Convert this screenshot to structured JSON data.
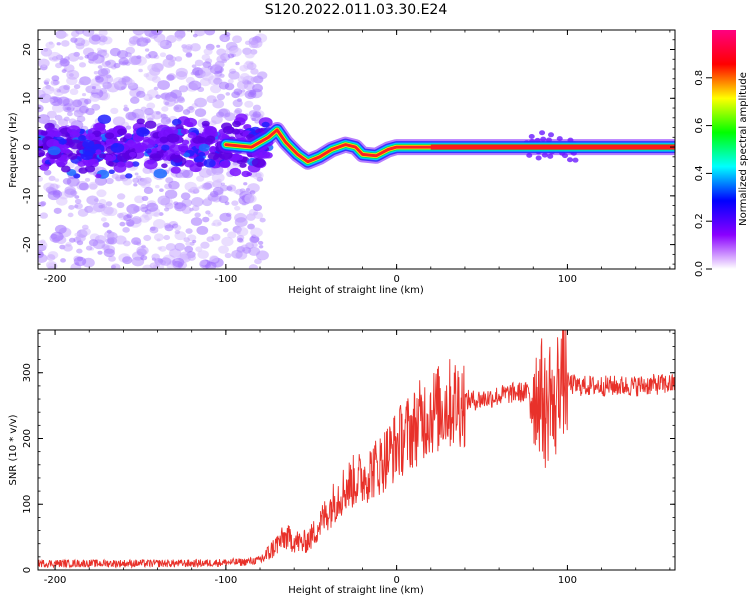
{
  "title": "S120.2022.011.03.30.E24",
  "chart_data": [
    {
      "type": "heatmap",
      "xlabel": "Height of straight line (km)",
      "ylabel": "Frequency (Hz)",
      "xlim": [
        -210,
        163
      ],
      "ylim": [
        -25,
        24
      ],
      "xticks": [
        -200,
        -100,
        0,
        100
      ],
      "yticks": [
        -20,
        -10,
        0,
        10,
        20
      ],
      "colorbar": {
        "label": "Normalized spectral amplitude",
        "range": [
          0,
          1
        ],
        "ticks": [
          "0.0",
          "0.2",
          "0.4",
          "0.6",
          "0.8"
        ],
        "colormap": [
          "#ffffff",
          "#8a00ff",
          "#0000ff",
          "#00ffff",
          "#00ff00",
          "#ffff00",
          "#ff0000",
          "#ff0080"
        ]
      },
      "ridge": [
        {
          "x": -100,
          "y": 0.5
        },
        {
          "x": -85,
          "y": 0
        },
        {
          "x": -75,
          "y": 2
        },
        {
          "x": -70,
          "y": 3.5
        },
        {
          "x": -65,
          "y": 1
        },
        {
          "x": -58,
          "y": -1.5
        },
        {
          "x": -52,
          "y": -3
        },
        {
          "x": -45,
          "y": -2
        },
        {
          "x": -38,
          "y": -0.5
        },
        {
          "x": -30,
          "y": 0.5
        },
        {
          "x": -24,
          "y": 0
        },
        {
          "x": -20,
          "y": -1.5
        },
        {
          "x": -12,
          "y": -1.8
        },
        {
          "x": -5,
          "y": -0.5
        },
        {
          "x": 0,
          "y": 0
        },
        {
          "x": 20,
          "y": 0
        },
        {
          "x": 163,
          "y": 0
        }
      ]
    },
    {
      "type": "line",
      "xlabel": "Height of straight line (km)",
      "ylabel": "SNR (10 * v/v)",
      "xlim": [
        -210,
        163
      ],
      "ylim": [
        0,
        365
      ],
      "xticks": [
        -200,
        -100,
        0,
        100
      ],
      "yticks": [
        0,
        100,
        200,
        300
      ],
      "series": [
        {
          "color": "#e8312a",
          "x": [
            -210,
            -180,
            -150,
            -120,
            -90,
            -80,
            -75,
            -70,
            -65,
            -60,
            -55,
            -50,
            -45,
            -40,
            -35,
            -30,
            -25,
            -20,
            -15,
            -10,
            -5,
            0,
            5,
            10,
            15,
            20,
            25,
            30,
            35,
            40,
            45,
            50,
            55,
            60,
            65,
            70,
            75,
            80,
            85,
            88,
            90,
            92,
            95,
            100,
            105,
            110,
            120,
            130,
            140,
            150,
            163
          ],
          "y": [
            10,
            10,
            10,
            10,
            12,
            15,
            25,
            40,
            50,
            45,
            40,
            50,
            70,
            90,
            110,
            125,
            135,
            140,
            150,
            160,
            175,
            190,
            205,
            215,
            230,
            240,
            245,
            252,
            255,
            258,
            258,
            260,
            262,
            265,
            268,
            270,
            270,
            272,
            265,
            230,
            290,
            220,
            300,
            285,
            280,
            280,
            280,
            280,
            280,
            282,
            283
          ]
        }
      ]
    }
  ]
}
